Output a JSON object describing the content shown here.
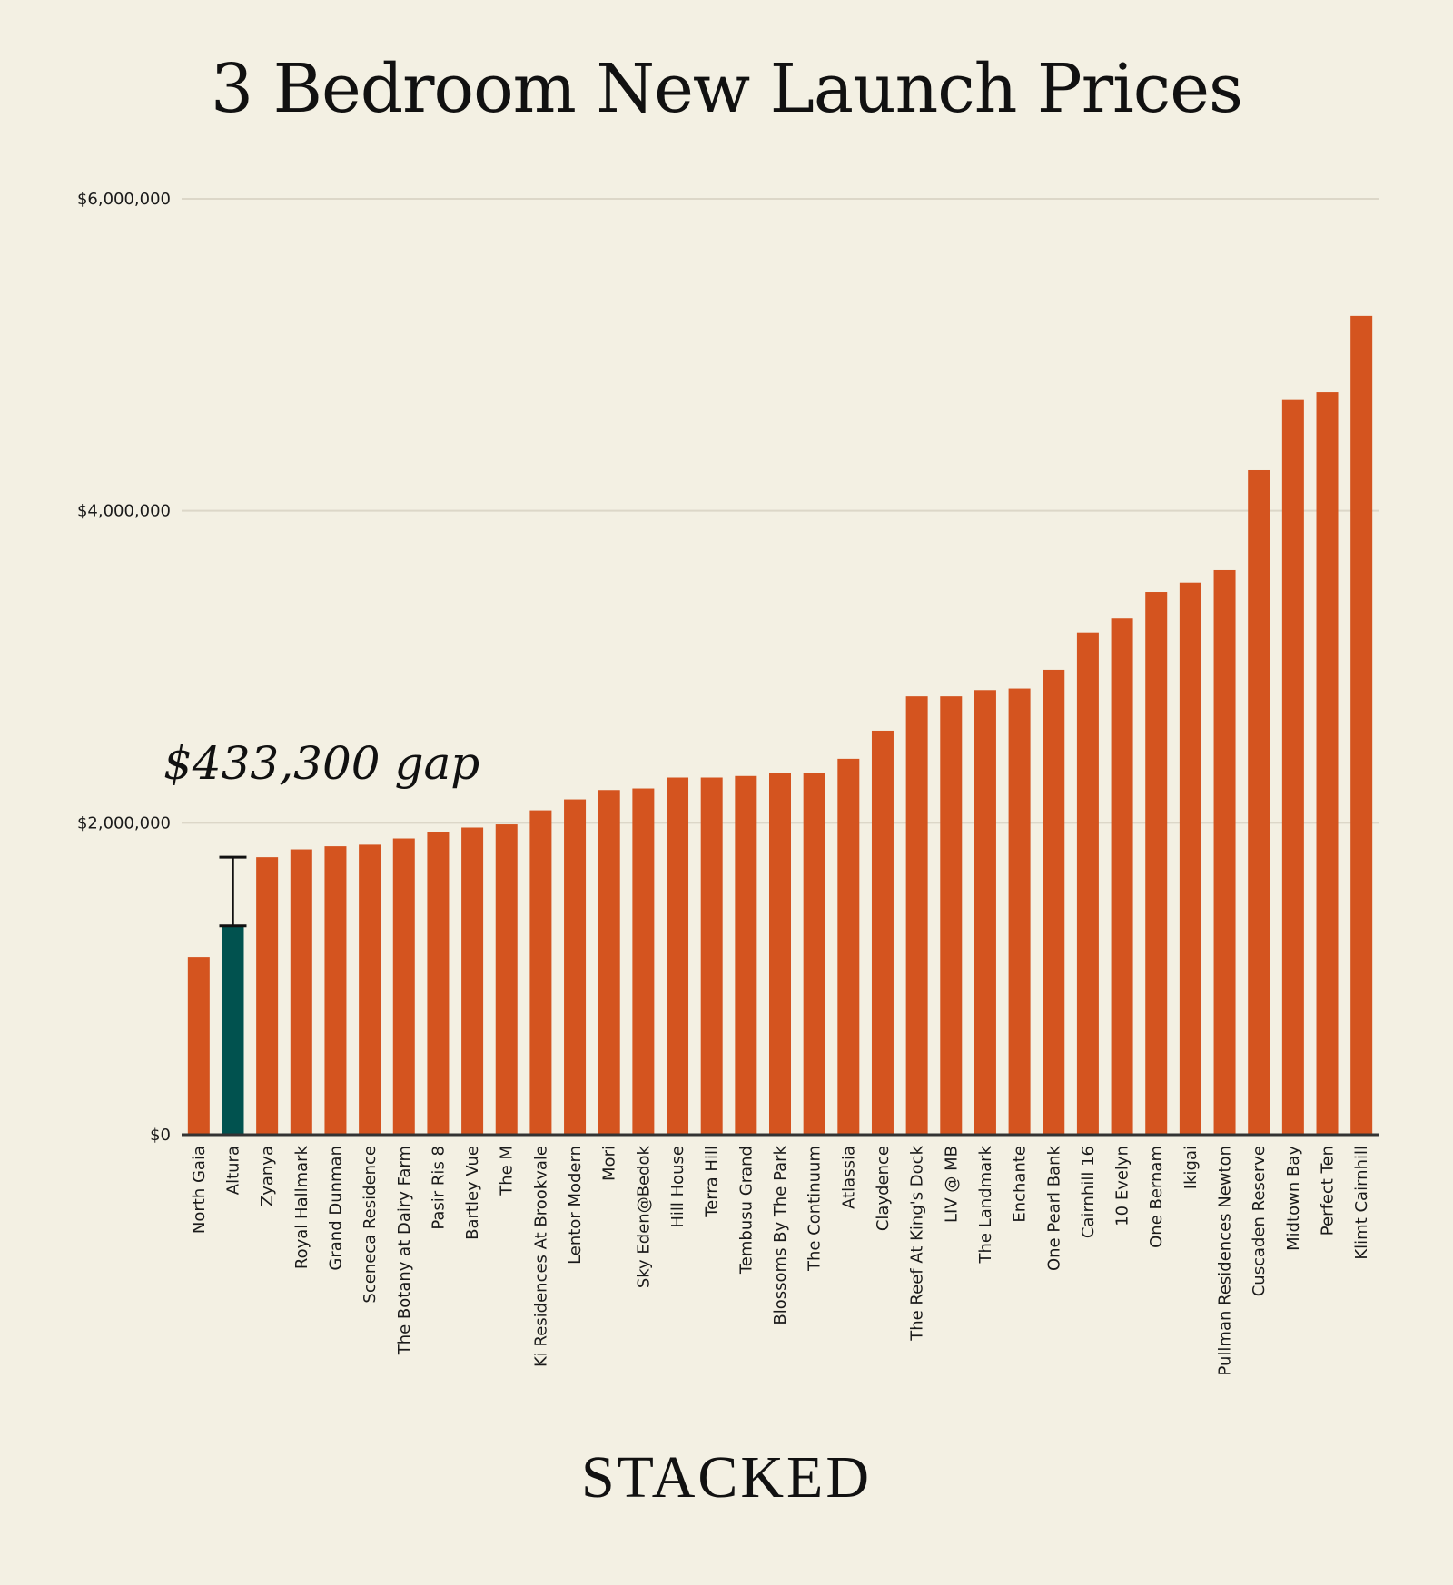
{
  "chart_data": {
    "type": "bar",
    "title": "3 Bedroom New Launch Prices",
    "xlabel": "",
    "ylabel": "",
    "ylim": [
      0,
      6000000
    ],
    "yticks": [
      {
        "value": 0,
        "label": "$0"
      },
      {
        "value": 2000000,
        "label": "$2,000,000"
      },
      {
        "value": 4000000,
        "label": "$4,000,000"
      },
      {
        "value": 6000000,
        "label": "$6,000,000"
      }
    ],
    "grid": true,
    "categories": [
      "North Gaia",
      "Altura",
      "Zyanya",
      "Royal Hallmark",
      "Grand Dunman",
      "Sceneca Residence",
      "The Botany at Dairy Farm",
      "Pasir Ris 8",
      "Bartley Vue",
      "The M",
      "Ki Residences At Brookvale",
      "Lentor Modern",
      "Mori",
      "Sky Eden@Bedok",
      "Hill House",
      "Terra Hill",
      "Tembusu Grand",
      "Blossoms By The Park",
      "The Continuum",
      "Atlassia",
      "Claydence",
      "The Reef At King's Dock",
      "LIV @ MB",
      "The Landmark",
      "Enchante",
      "One Pearl Bank",
      "Cairnhill 16",
      "10 Evelyn",
      "One Bernam",
      "Ikigai",
      "Pullman Residences Newton",
      "Cuscaden Reserve",
      "Midtown Bay",
      "Perfect Ten",
      "Klimt Cairnhill"
    ],
    "values": [
      1140000,
      1340000,
      1780000,
      1830000,
      1850000,
      1860000,
      1900000,
      1940000,
      1970000,
      1990000,
      2080000,
      2150000,
      2210000,
      2220000,
      2290000,
      2290000,
      2300000,
      2320000,
      2320000,
      2410000,
      2590000,
      2810000,
      2810000,
      2850000,
      2860000,
      2980000,
      3220000,
      3310000,
      3480000,
      3540000,
      3620000,
      4260000,
      4710000,
      4760000,
      5250000
    ],
    "highlight_index": 1,
    "colors": {
      "bar": "#d4541f",
      "highlight": "#01524f",
      "grid": "#dcd7c8",
      "axis": "#333333",
      "background": "#f3f0e3"
    },
    "annotation": {
      "text": "$433,300 gap",
      "from_value": 1340000,
      "to_value": 1780000
    }
  },
  "brand": "STACKED"
}
